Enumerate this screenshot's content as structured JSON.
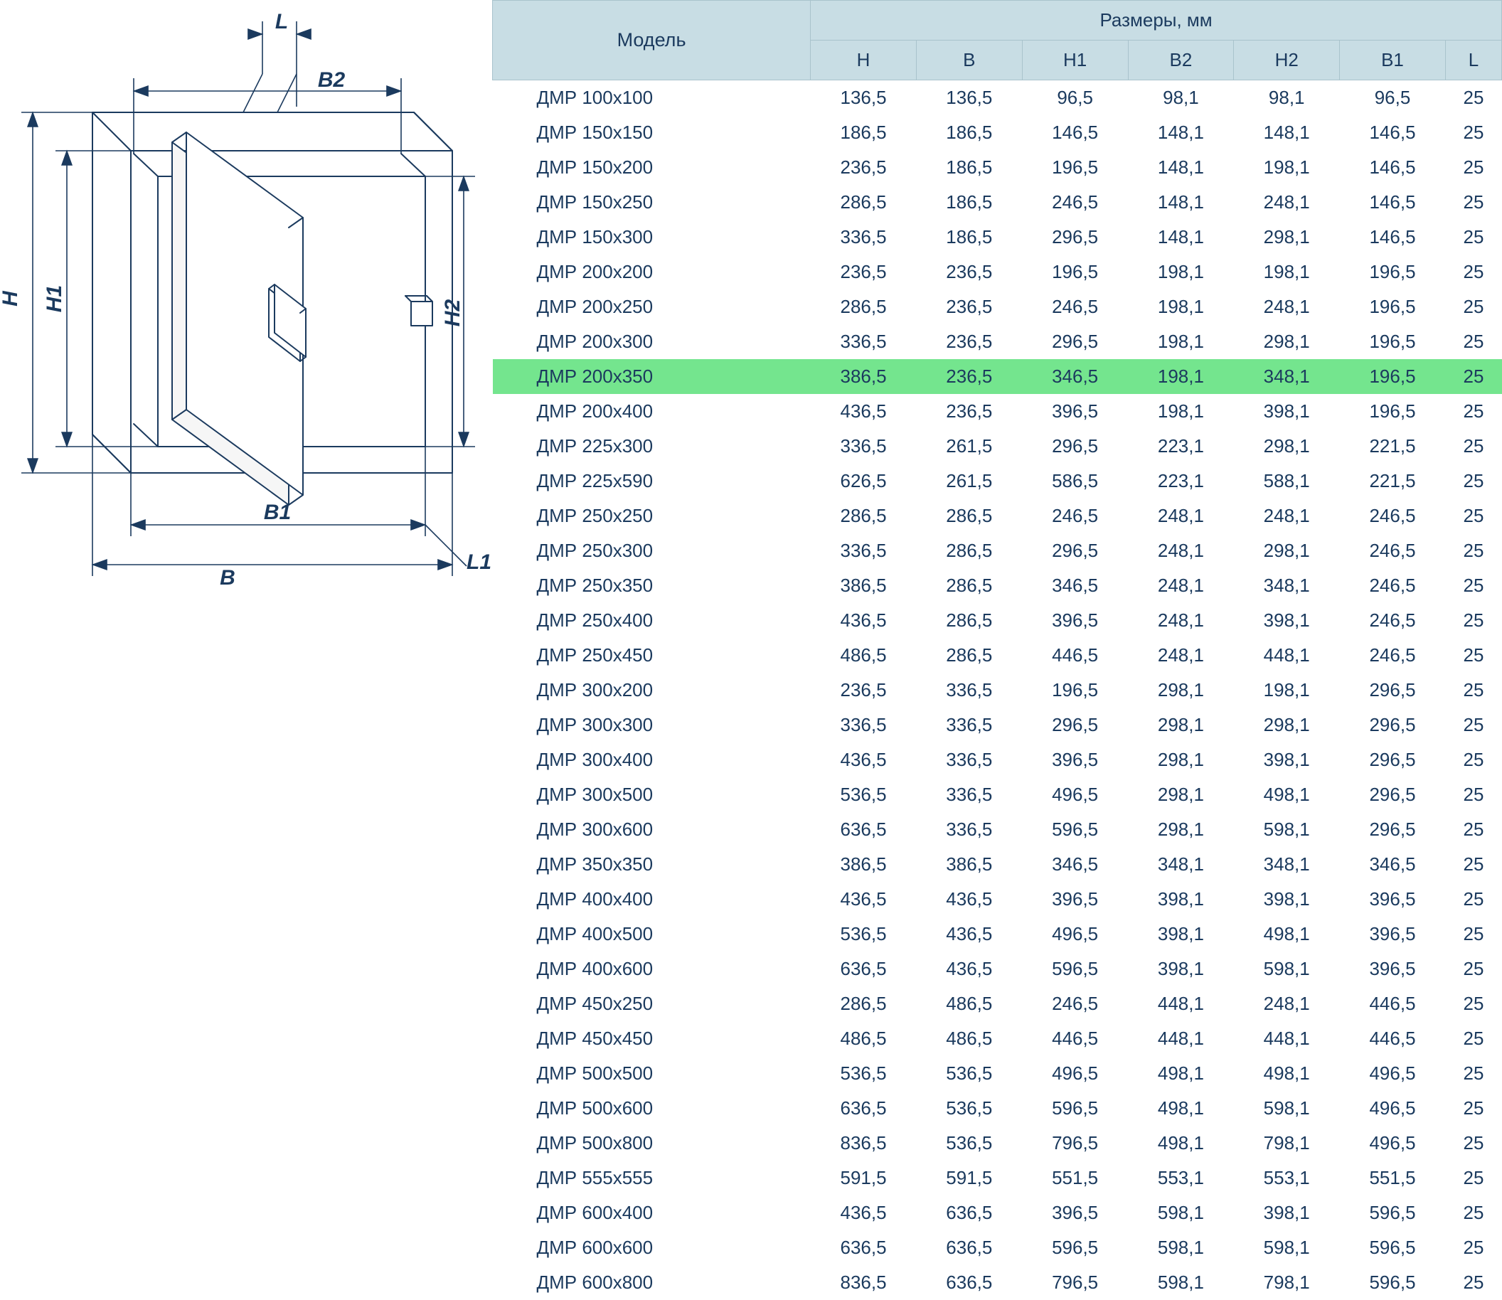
{
  "diagram": {
    "labels": {
      "H": "H",
      "H1": "H1",
      "H2": "H2",
      "B": "B",
      "B1": "B1",
      "B2": "B2",
      "L": "L",
      "L1": "L1"
    },
    "stroke_color": "#1b3a5e",
    "fill_color": "#ffffff",
    "label_fontsize": 30,
    "label_font_style": "italic"
  },
  "table": {
    "header_bg": "#c8dde4",
    "header_border": "#a9c3cc",
    "text_color": "#1b3a5e",
    "highlight_bg": "#74e58e",
    "font_size": 26,
    "model_header": "Модель",
    "dimensions_header": "Размеры, мм",
    "columns": [
      "H",
      "B",
      "H1",
      "B2",
      "H2",
      "B1",
      "L"
    ],
    "highlighted_row_index": 8,
    "rows": [
      {
        "model": "ДМР 100х100",
        "H": "136,5",
        "B": "136,5",
        "H1": "96,5",
        "B2": "98,1",
        "H2": "98,1",
        "B1": "96,5",
        "L": "25"
      },
      {
        "model": "ДМР 150х150",
        "H": "186,5",
        "B": "186,5",
        "H1": "146,5",
        "B2": "148,1",
        "H2": "148,1",
        "B1": "146,5",
        "L": "25"
      },
      {
        "model": "ДМР 150х200",
        "H": "236,5",
        "B": "186,5",
        "H1": "196,5",
        "B2": "148,1",
        "H2": "198,1",
        "B1": "146,5",
        "L": "25"
      },
      {
        "model": "ДМР 150х250",
        "H": "286,5",
        "B": "186,5",
        "H1": "246,5",
        "B2": "148,1",
        "H2": "248,1",
        "B1": "146,5",
        "L": "25"
      },
      {
        "model": "ДМР 150х300",
        "H": "336,5",
        "B": "186,5",
        "H1": "296,5",
        "B2": "148,1",
        "H2": "298,1",
        "B1": "146,5",
        "L": "25"
      },
      {
        "model": "ДМР 200х200",
        "H": "236,5",
        "B": "236,5",
        "H1": "196,5",
        "B2": "198,1",
        "H2": "198,1",
        "B1": "196,5",
        "L": "25"
      },
      {
        "model": "ДМР 200х250",
        "H": "286,5",
        "B": "236,5",
        "H1": "246,5",
        "B2": "198,1",
        "H2": "248,1",
        "B1": "196,5",
        "L": "25"
      },
      {
        "model": "ДМР 200х300",
        "H": "336,5",
        "B": "236,5",
        "H1": "296,5",
        "B2": "198,1",
        "H2": "298,1",
        "B1": "196,5",
        "L": "25"
      },
      {
        "model": "ДМР 200х350",
        "H": "386,5",
        "B": "236,5",
        "H1": "346,5",
        "B2": "198,1",
        "H2": "348,1",
        "B1": "196,5",
        "L": "25"
      },
      {
        "model": "ДМР 200х400",
        "H": "436,5",
        "B": "236,5",
        "H1": "396,5",
        "B2": "198,1",
        "H2": "398,1",
        "B1": "196,5",
        "L": "25"
      },
      {
        "model": "ДМР 225х300",
        "H": "336,5",
        "B": "261,5",
        "H1": "296,5",
        "B2": "223,1",
        "H2": "298,1",
        "B1": "221,5",
        "L": "25"
      },
      {
        "model": "ДМР 225х590",
        "H": "626,5",
        "B": "261,5",
        "H1": "586,5",
        "B2": "223,1",
        "H2": "588,1",
        "B1": "221,5",
        "L": "25"
      },
      {
        "model": "ДМР 250х250",
        "H": "286,5",
        "B": "286,5",
        "H1": "246,5",
        "B2": "248,1",
        "H2": "248,1",
        "B1": "246,5",
        "L": "25"
      },
      {
        "model": "ДМР 250х300",
        "H": "336,5",
        "B": "286,5",
        "H1": "296,5",
        "B2": "248,1",
        "H2": "298,1",
        "B1": "246,5",
        "L": "25"
      },
      {
        "model": "ДМР 250х350",
        "H": "386,5",
        "B": "286,5",
        "H1": "346,5",
        "B2": "248,1",
        "H2": "348,1",
        "B1": "246,5",
        "L": "25"
      },
      {
        "model": "ДМР 250х400",
        "H": "436,5",
        "B": "286,5",
        "H1": "396,5",
        "B2": "248,1",
        "H2": "398,1",
        "B1": "246,5",
        "L": "25"
      },
      {
        "model": "ДМР 250х450",
        "H": "486,5",
        "B": "286,5",
        "H1": "446,5",
        "B2": "248,1",
        "H2": "448,1",
        "B1": "246,5",
        "L": "25"
      },
      {
        "model": "ДМР 300х200",
        "H": "236,5",
        "B": "336,5",
        "H1": "196,5",
        "B2": "298,1",
        "H2": "198,1",
        "B1": "296,5",
        "L": "25"
      },
      {
        "model": "ДМР 300х300",
        "H": "336,5",
        "B": "336,5",
        "H1": "296,5",
        "B2": "298,1",
        "H2": "298,1",
        "B1": "296,5",
        "L": "25"
      },
      {
        "model": "ДМР 300х400",
        "H": "436,5",
        "B": "336,5",
        "H1": "396,5",
        "B2": "298,1",
        "H2": "398,1",
        "B1": "296,5",
        "L": "25"
      },
      {
        "model": "ДМР 300х500",
        "H": "536,5",
        "B": "336,5",
        "H1": "496,5",
        "B2": "298,1",
        "H2": "498,1",
        "B1": "296,5",
        "L": "25"
      },
      {
        "model": "ДМР 300х600",
        "H": "636,5",
        "B": "336,5",
        "H1": "596,5",
        "B2": "298,1",
        "H2": "598,1",
        "B1": "296,5",
        "L": "25"
      },
      {
        "model": "ДМР 350х350",
        "H": "386,5",
        "B": "386,5",
        "H1": "346,5",
        "B2": "348,1",
        "H2": "348,1",
        "B1": "346,5",
        "L": "25"
      },
      {
        "model": "ДМР 400х400",
        "H": "436,5",
        "B": "436,5",
        "H1": "396,5",
        "B2": "398,1",
        "H2": "398,1",
        "B1": "396,5",
        "L": "25"
      },
      {
        "model": "ДМР 400х500",
        "H": "536,5",
        "B": "436,5",
        "H1": "496,5",
        "B2": "398,1",
        "H2": "498,1",
        "B1": "396,5",
        "L": "25"
      },
      {
        "model": "ДМР 400х600",
        "H": "636,5",
        "B": "436,5",
        "H1": "596,5",
        "B2": "398,1",
        "H2": "598,1",
        "B1": "396,5",
        "L": "25"
      },
      {
        "model": "ДМР 450х250",
        "H": "286,5",
        "B": "486,5",
        "H1": "246,5",
        "B2": "448,1",
        "H2": "248,1",
        "B1": "446,5",
        "L": "25"
      },
      {
        "model": "ДМР 450х450",
        "H": "486,5",
        "B": "486,5",
        "H1": "446,5",
        "B2": "448,1",
        "H2": "448,1",
        "B1": "446,5",
        "L": "25"
      },
      {
        "model": "ДМР 500х500",
        "H": "536,5",
        "B": "536,5",
        "H1": "496,5",
        "B2": "498,1",
        "H2": "498,1",
        "B1": "496,5",
        "L": "25"
      },
      {
        "model": "ДМР 500х600",
        "H": "636,5",
        "B": "536,5",
        "H1": "596,5",
        "B2": "498,1",
        "H2": "598,1",
        "B1": "496,5",
        "L": "25"
      },
      {
        "model": "ДМР 500х800",
        "H": "836,5",
        "B": "536,5",
        "H1": "796,5",
        "B2": "498,1",
        "H2": "798,1",
        "B1": "496,5",
        "L": "25"
      },
      {
        "model": "ДМР 555х555",
        "H": "591,5",
        "B": "591,5",
        "H1": "551,5",
        "B2": "553,1",
        "H2": "553,1",
        "B1": "551,5",
        "L": "25"
      },
      {
        "model": "ДМР 600х400",
        "H": "436,5",
        "B": "636,5",
        "H1": "396,5",
        "B2": "598,1",
        "H2": "398,1",
        "B1": "596,5",
        "L": "25"
      },
      {
        "model": "ДМР 600х600",
        "H": "636,5",
        "B": "636,5",
        "H1": "596,5",
        "B2": "598,1",
        "H2": "598,1",
        "B1": "596,5",
        "L": "25"
      },
      {
        "model": "ДМР 600х800",
        "H": "836,5",
        "B": "636,5",
        "H1": "796,5",
        "B2": "598,1",
        "H2": "798,1",
        "B1": "596,5",
        "L": "25"
      }
    ]
  }
}
